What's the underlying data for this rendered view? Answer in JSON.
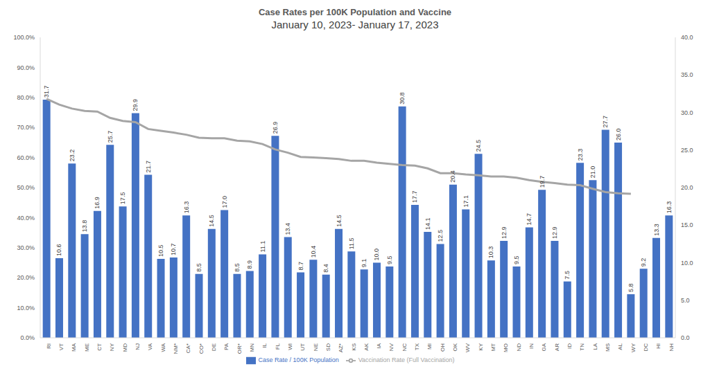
{
  "chart_data": {
    "type": "bar",
    "title": "Case Rates per 100K Population and Vaccine",
    "subtitle": "January 10, 2023- January 17, 2023",
    "categories": [
      "RI",
      "VT",
      "MA",
      "ME",
      "CT",
      "NY",
      "MD",
      "NJ",
      "VA",
      "WA",
      "NM*",
      "CA*",
      "CO*",
      "DE",
      "PA",
      "OR*",
      "MN",
      "IL",
      "FL",
      "WI",
      "UT",
      "NE",
      "SD",
      "AZ*",
      "KS",
      "AK",
      "IA",
      "NV",
      "NC",
      "TX",
      "MI",
      "OH",
      "OK",
      "WV",
      "KY",
      "MT",
      "MO",
      "ND",
      "IN",
      "GA",
      "AR",
      "ID",
      "TN",
      "LA",
      "MS",
      "AL",
      "WY",
      "DC",
      "HI",
      "NH"
    ],
    "series": [
      {
        "name": "Case Rate / 100K Population",
        "type": "bar",
        "color": "#4472c4",
        "axis": "y2",
        "values": [
          31.7,
          10.6,
          23.2,
          13.8,
          16.9,
          25.7,
          17.5,
          29.9,
          21.7,
          10.5,
          10.7,
          16.3,
          8.5,
          14.5,
          17.0,
          8.5,
          8.9,
          11.1,
          26.9,
          13.4,
          8.7,
          10.4,
          8.4,
          14.5,
          11.5,
          9.1,
          10.0,
          9.5,
          30.8,
          17.7,
          14.1,
          12.5,
          20.4,
          17.1,
          24.5,
          10.3,
          12.9,
          9.5,
          14.7,
          19.7,
          12.9,
          7.5,
          23.3,
          21.0,
          27.7,
          26.0,
          5.8,
          9.2,
          13.3,
          16.3
        ],
        "value_labels": [
          "31.7",
          "10.6",
          "23.2",
          "13.8",
          "16.9",
          "25.7",
          "17.5",
          "29.9",
          "21.7",
          "10.5",
          "10.7",
          "16.3",
          "8.5",
          "14.5",
          "17.0",
          "8.5",
          "8.9",
          "11.1",
          "26.9",
          "13.4",
          "8.7",
          "10.4",
          "8.4",
          "14.5",
          "11.5",
          "9.1",
          "10.0",
          "9.5",
          "30.8",
          "17.7",
          "14.1",
          "12.5",
          "20.4",
          "17.1",
          "24.5",
          "10.3",
          "12.9",
          "9.5",
          "14.7",
          "19.7",
          "12.9",
          "7.5",
          "23.3",
          "21.0",
          "27.7",
          "26.0",
          "5.8",
          "9.2",
          "13.3",
          "16.3"
        ]
      },
      {
        "name": "Vaccination Rate (Full Vaccination)",
        "type": "line",
        "color": "#a5a5a5",
        "marker": "none",
        "values": [
          79.5,
          77.6,
          76.3,
          75.5,
          75.3,
          73.2,
          72.2,
          71.8,
          69.5,
          68.9,
          68.3,
          67.6,
          66.6,
          66.4,
          66.4,
          65.6,
          65.4,
          64.5,
          62.7,
          61.6,
          60.2,
          60.0,
          59.8,
          59.5,
          58.9,
          58.9,
          58.3,
          57.9,
          57.5,
          57.3,
          56.4,
          54.8,
          54.8,
          54.4,
          54.1,
          53.7,
          53.7,
          53.3,
          52.5,
          51.9,
          51.5,
          51.0,
          50.8,
          49.6,
          48.5,
          48.1,
          47.9,
          null,
          null,
          null
        ]
      }
    ],
    "ylim": [
      0,
      100
    ],
    "yticks": [
      {
        "value": 0,
        "label": "0.0%"
      },
      {
        "value": 10,
        "label": "10.0%"
      },
      {
        "value": 20,
        "label": "20.0%"
      },
      {
        "value": 30,
        "label": "30.0%"
      },
      {
        "value": 40,
        "label": "40.0%"
      },
      {
        "value": 50,
        "label": "50.0%"
      },
      {
        "value": 60,
        "label": "60.0%"
      },
      {
        "value": 70,
        "label": "70.0%"
      },
      {
        "value": 80,
        "label": "80.0%"
      },
      {
        "value": 90,
        "label": "90.0%"
      },
      {
        "value": 100,
        "label": "100.0%"
      }
    ],
    "y2lim": [
      0,
      40
    ],
    "y2ticks": [
      {
        "value": 0,
        "label": "0.0"
      },
      {
        "value": 5,
        "label": "5.0"
      },
      {
        "value": 10,
        "label": "10.0"
      },
      {
        "value": 15,
        "label": "15.0"
      },
      {
        "value": 20,
        "label": "20.0"
      },
      {
        "value": 25,
        "label": "25.0"
      },
      {
        "value": 30,
        "label": "30.0"
      },
      {
        "value": 35,
        "label": "35.0"
      },
      {
        "value": 40,
        "label": "40.0"
      }
    ],
    "grid": false,
    "legend": "bottom",
    "data_labels": true
  }
}
